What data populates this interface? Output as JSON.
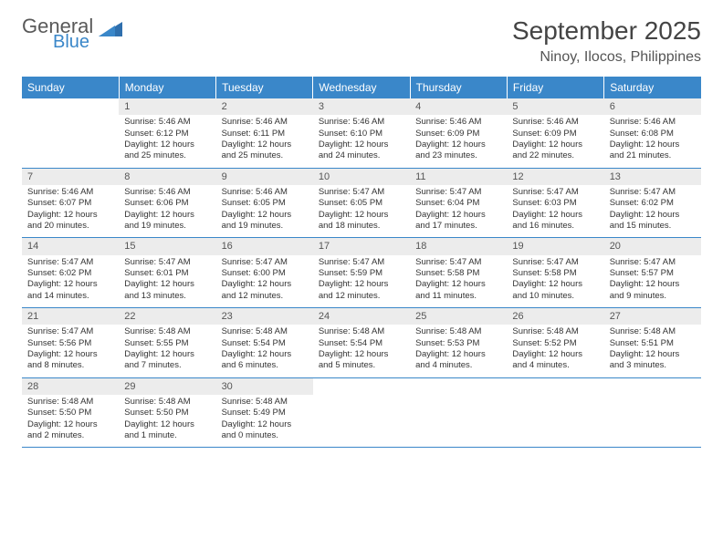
{
  "logo": {
    "text1": "General",
    "text2": "Blue",
    "text1_color": "#595959",
    "text2_color": "#3a87c9",
    "shape_color": "#2f6fad"
  },
  "title": {
    "month_year": "September 2025",
    "location": "Ninoy, Ilocos, Philippines",
    "title_color": "#444444",
    "location_color": "#555555"
  },
  "day_headers": [
    "Sunday",
    "Monday",
    "Tuesday",
    "Wednesday",
    "Thursday",
    "Friday",
    "Saturday"
  ],
  "header_bg": "#3a87c9",
  "header_fg": "#ffffff",
  "daynum_bg": "#ececec",
  "border_color": "#3a87c9",
  "body_font_size": 9.5,
  "weeks": [
    [
      null,
      {
        "n": "1",
        "sr": "Sunrise: 5:46 AM",
        "ss": "Sunset: 6:12 PM",
        "d1": "Daylight: 12 hours",
        "d2": "and 25 minutes."
      },
      {
        "n": "2",
        "sr": "Sunrise: 5:46 AM",
        "ss": "Sunset: 6:11 PM",
        "d1": "Daylight: 12 hours",
        "d2": "and 25 minutes."
      },
      {
        "n": "3",
        "sr": "Sunrise: 5:46 AM",
        "ss": "Sunset: 6:10 PM",
        "d1": "Daylight: 12 hours",
        "d2": "and 24 minutes."
      },
      {
        "n": "4",
        "sr": "Sunrise: 5:46 AM",
        "ss": "Sunset: 6:09 PM",
        "d1": "Daylight: 12 hours",
        "d2": "and 23 minutes."
      },
      {
        "n": "5",
        "sr": "Sunrise: 5:46 AM",
        "ss": "Sunset: 6:09 PM",
        "d1": "Daylight: 12 hours",
        "d2": "and 22 minutes."
      },
      {
        "n": "6",
        "sr": "Sunrise: 5:46 AM",
        "ss": "Sunset: 6:08 PM",
        "d1": "Daylight: 12 hours",
        "d2": "and 21 minutes."
      }
    ],
    [
      {
        "n": "7",
        "sr": "Sunrise: 5:46 AM",
        "ss": "Sunset: 6:07 PM",
        "d1": "Daylight: 12 hours",
        "d2": "and 20 minutes."
      },
      {
        "n": "8",
        "sr": "Sunrise: 5:46 AM",
        "ss": "Sunset: 6:06 PM",
        "d1": "Daylight: 12 hours",
        "d2": "and 19 minutes."
      },
      {
        "n": "9",
        "sr": "Sunrise: 5:46 AM",
        "ss": "Sunset: 6:05 PM",
        "d1": "Daylight: 12 hours",
        "d2": "and 19 minutes."
      },
      {
        "n": "10",
        "sr": "Sunrise: 5:47 AM",
        "ss": "Sunset: 6:05 PM",
        "d1": "Daylight: 12 hours",
        "d2": "and 18 minutes."
      },
      {
        "n": "11",
        "sr": "Sunrise: 5:47 AM",
        "ss": "Sunset: 6:04 PM",
        "d1": "Daylight: 12 hours",
        "d2": "and 17 minutes."
      },
      {
        "n": "12",
        "sr": "Sunrise: 5:47 AM",
        "ss": "Sunset: 6:03 PM",
        "d1": "Daylight: 12 hours",
        "d2": "and 16 minutes."
      },
      {
        "n": "13",
        "sr": "Sunrise: 5:47 AM",
        "ss": "Sunset: 6:02 PM",
        "d1": "Daylight: 12 hours",
        "d2": "and 15 minutes."
      }
    ],
    [
      {
        "n": "14",
        "sr": "Sunrise: 5:47 AM",
        "ss": "Sunset: 6:02 PM",
        "d1": "Daylight: 12 hours",
        "d2": "and 14 minutes."
      },
      {
        "n": "15",
        "sr": "Sunrise: 5:47 AM",
        "ss": "Sunset: 6:01 PM",
        "d1": "Daylight: 12 hours",
        "d2": "and 13 minutes."
      },
      {
        "n": "16",
        "sr": "Sunrise: 5:47 AM",
        "ss": "Sunset: 6:00 PM",
        "d1": "Daylight: 12 hours",
        "d2": "and 12 minutes."
      },
      {
        "n": "17",
        "sr": "Sunrise: 5:47 AM",
        "ss": "Sunset: 5:59 PM",
        "d1": "Daylight: 12 hours",
        "d2": "and 12 minutes."
      },
      {
        "n": "18",
        "sr": "Sunrise: 5:47 AM",
        "ss": "Sunset: 5:58 PM",
        "d1": "Daylight: 12 hours",
        "d2": "and 11 minutes."
      },
      {
        "n": "19",
        "sr": "Sunrise: 5:47 AM",
        "ss": "Sunset: 5:58 PM",
        "d1": "Daylight: 12 hours",
        "d2": "and 10 minutes."
      },
      {
        "n": "20",
        "sr": "Sunrise: 5:47 AM",
        "ss": "Sunset: 5:57 PM",
        "d1": "Daylight: 12 hours",
        "d2": "and 9 minutes."
      }
    ],
    [
      {
        "n": "21",
        "sr": "Sunrise: 5:47 AM",
        "ss": "Sunset: 5:56 PM",
        "d1": "Daylight: 12 hours",
        "d2": "and 8 minutes."
      },
      {
        "n": "22",
        "sr": "Sunrise: 5:48 AM",
        "ss": "Sunset: 5:55 PM",
        "d1": "Daylight: 12 hours",
        "d2": "and 7 minutes."
      },
      {
        "n": "23",
        "sr": "Sunrise: 5:48 AM",
        "ss": "Sunset: 5:54 PM",
        "d1": "Daylight: 12 hours",
        "d2": "and 6 minutes."
      },
      {
        "n": "24",
        "sr": "Sunrise: 5:48 AM",
        "ss": "Sunset: 5:54 PM",
        "d1": "Daylight: 12 hours",
        "d2": "and 5 minutes."
      },
      {
        "n": "25",
        "sr": "Sunrise: 5:48 AM",
        "ss": "Sunset: 5:53 PM",
        "d1": "Daylight: 12 hours",
        "d2": "and 4 minutes."
      },
      {
        "n": "26",
        "sr": "Sunrise: 5:48 AM",
        "ss": "Sunset: 5:52 PM",
        "d1": "Daylight: 12 hours",
        "d2": "and 4 minutes."
      },
      {
        "n": "27",
        "sr": "Sunrise: 5:48 AM",
        "ss": "Sunset: 5:51 PM",
        "d1": "Daylight: 12 hours",
        "d2": "and 3 minutes."
      }
    ],
    [
      {
        "n": "28",
        "sr": "Sunrise: 5:48 AM",
        "ss": "Sunset: 5:50 PM",
        "d1": "Daylight: 12 hours",
        "d2": "and 2 minutes."
      },
      {
        "n": "29",
        "sr": "Sunrise: 5:48 AM",
        "ss": "Sunset: 5:50 PM",
        "d1": "Daylight: 12 hours",
        "d2": "and 1 minute."
      },
      {
        "n": "30",
        "sr": "Sunrise: 5:48 AM",
        "ss": "Sunset: 5:49 PM",
        "d1": "Daylight: 12 hours",
        "d2": "and 0 minutes."
      },
      null,
      null,
      null,
      null
    ]
  ]
}
